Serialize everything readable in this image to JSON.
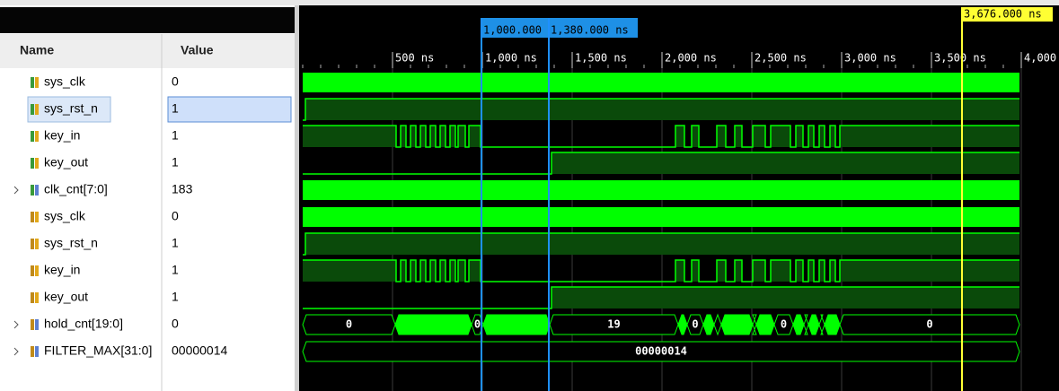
{
  "header": {
    "name": "Name",
    "value": "Value"
  },
  "signals": [
    {
      "name": "sys_clk",
      "value": "0"
    },
    {
      "name": "sys_rst_n",
      "value": "1"
    },
    {
      "name": "key_in",
      "value": "1"
    },
    {
      "name": "key_out",
      "value": "1"
    },
    {
      "name": "clk_cnt[7:0]",
      "value": "183"
    },
    {
      "name": "sys_clk",
      "value": "0"
    },
    {
      "name": "sys_rst_n",
      "value": "1"
    },
    {
      "name": "key_in",
      "value": "1"
    },
    {
      "name": "key_out",
      "value": "1"
    },
    {
      "name": "hold_cnt[19:0]",
      "value": "0"
    },
    {
      "name": "FILTER_MAX[31:0]",
      "value": "00000014"
    }
  ],
  "ruler": [
    "500 ns",
    "1,000 ns",
    "1,500 ns",
    "2,000 ns",
    "2,500 ns",
    "3,000 ns",
    "3,500 ns",
    "4,000"
  ],
  "cursors": [
    "1,000.000",
    "1,380.000 ns",
    "3,676.000 ns"
  ],
  "hold_cnt_labels": [
    "0",
    "0",
    "19",
    "0",
    "0",
    "0"
  ],
  "filter_max_label": "00000014"
}
